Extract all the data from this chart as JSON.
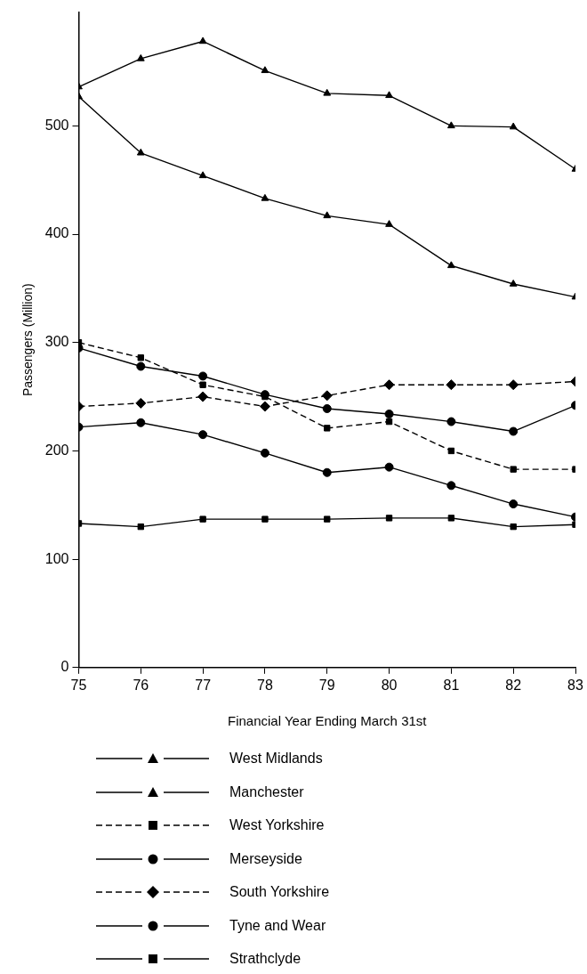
{
  "chart_data": {
    "type": "line",
    "xlabel": "Financial Year Ending March 31st",
    "ylabel": "Passengers (Million)",
    "x": [
      75,
      76,
      77,
      78,
      79,
      80,
      81,
      82,
      83
    ],
    "xlim": [
      75,
      83
    ],
    "xticks": [
      75,
      76,
      77,
      78,
      79,
      80,
      81,
      82,
      83
    ],
    "ylim": [
      0,
      605
    ],
    "yticks": [
      0,
      100,
      200,
      300,
      400,
      500
    ],
    "grid": false,
    "legend": "bottom",
    "series": [
      {
        "name": "West Midlands",
        "color": "#000000",
        "marker": "triangle",
        "line_style": "solid",
        "values": [
          536,
          562,
          578,
          551,
          530,
          528,
          500,
          499,
          460
        ]
      },
      {
        "name": "Manchester",
        "color": "#000000",
        "marker": "triangle",
        "line_style": "solid",
        "values": [
          527,
          475,
          454,
          433,
          417,
          409,
          371,
          354,
          342
        ]
      },
      {
        "name": "West Yorkshire",
        "color": "#000000",
        "marker": "square",
        "line_style": "dashed",
        "values": [
          300,
          286,
          261,
          250,
          221,
          227,
          200,
          183,
          183
        ]
      },
      {
        "name": "Merseyside",
        "color": "#000000",
        "marker": "circle",
        "line_style": "solid",
        "values": [
          295,
          278,
          269,
          252,
          239,
          234,
          227,
          218,
          242
        ]
      },
      {
        "name": "South Yorkshire",
        "color": "#000000",
        "marker": "diamond",
        "line_style": "dashed",
        "values": [
          241,
          244,
          250,
          241,
          251,
          261,
          261,
          261,
          264
        ]
      },
      {
        "name": "Tyne and Wear",
        "color": "#000000",
        "marker": "circle",
        "line_style": "solid",
        "values": [
          222,
          226,
          215,
          198,
          180,
          185,
          168,
          151,
          139
        ]
      },
      {
        "name": "Strathclyde",
        "color": "#000000",
        "marker": "square",
        "line_style": "solid",
        "values": [
          133,
          130,
          137,
          137,
          137,
          138,
          138,
          130,
          132
        ]
      }
    ]
  }
}
